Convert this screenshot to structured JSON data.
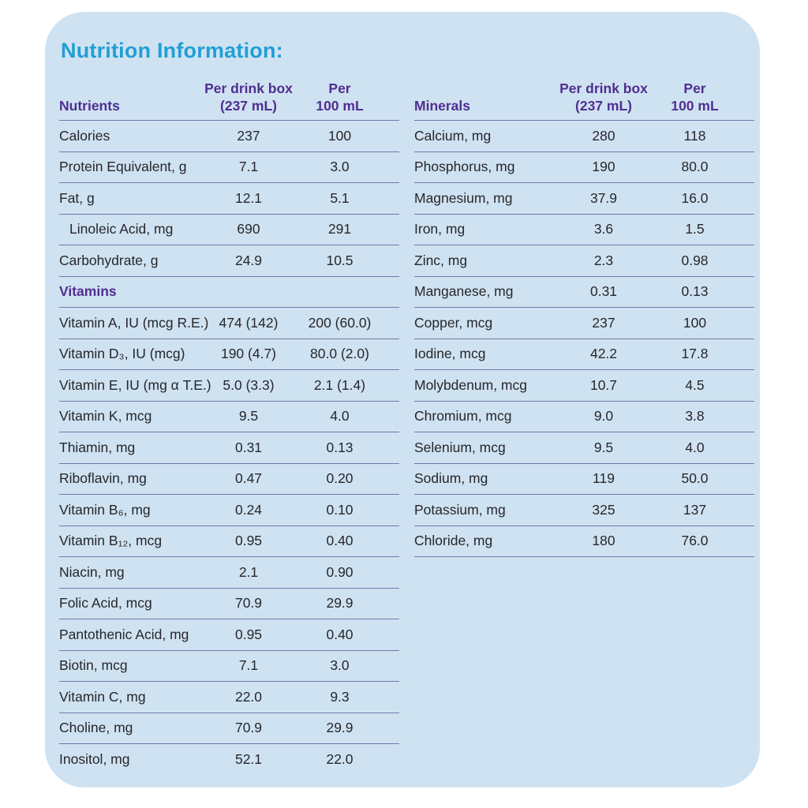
{
  "title": "Nutrition Information:",
  "colors": {
    "page_bg": "#ffffff",
    "card_bg": "#cfe2f1",
    "title": "#219fd6",
    "heading": "#502e91",
    "text": "#26272b",
    "divider": "#7376a9"
  },
  "column_headers": {
    "per_box_line1": "Per drink box",
    "per_box_line2": "(237 mL)",
    "per_100_line1": "Per",
    "per_100_line2": "100 mL"
  },
  "nutrients_table": {
    "header": "Nutrients",
    "rows": [
      {
        "label": "Calories",
        "per_box": "237",
        "per_100": "100"
      },
      {
        "label": "Protein Equivalent, g",
        "per_box": "7.1",
        "per_100": "3.0"
      },
      {
        "label": "Fat, g",
        "per_box": "12.1",
        "per_100": "5.1"
      },
      {
        "label": "Linoleic Acid, mg",
        "per_box": "690",
        "per_100": "291",
        "indent": true
      },
      {
        "label": "Carbohydrate, g",
        "per_box": "24.9",
        "per_100": "10.5"
      },
      {
        "section": "Vitamins"
      },
      {
        "label": "Vitamin A, IU (mcg R.E.)",
        "per_box": "474 (142)",
        "per_100": "200 (60.0)"
      },
      {
        "label": "Vitamin D₃, IU (mcg)",
        "per_box": "190 (4.7)",
        "per_100": "80.0 (2.0)"
      },
      {
        "label": "Vitamin E, IU (mg α T.E.)",
        "per_box": "5.0 (3.3)",
        "per_100": "2.1 (1.4)"
      },
      {
        "label": "Vitamin K, mcg",
        "per_box": "9.5",
        "per_100": "4.0"
      },
      {
        "label": "Thiamin, mg",
        "per_box": "0.31",
        "per_100": "0.13"
      },
      {
        "label": "Riboflavin, mg",
        "per_box": "0.47",
        "per_100": "0.20"
      },
      {
        "label": "Vitamin B₆, mg",
        "per_box": "0.24",
        "per_100": "0.10"
      },
      {
        "label": "Vitamin B₁₂, mcg",
        "per_box": "0.95",
        "per_100": "0.40"
      },
      {
        "label": "Niacin, mg",
        "per_box": "2.1",
        "per_100": "0.90"
      },
      {
        "label": "Folic Acid, mcg",
        "per_box": "70.9",
        "per_100": "29.9"
      },
      {
        "label": "Pantothenic Acid, mg",
        "per_box": "0.95",
        "per_100": "0.40"
      },
      {
        "label": "Biotin, mcg",
        "per_box": "7.1",
        "per_100": "3.0"
      },
      {
        "label": "Vitamin C, mg",
        "per_box": "22.0",
        "per_100": "9.3"
      },
      {
        "label": "Choline, mg",
        "per_box": "70.9",
        "per_100": "29.9"
      },
      {
        "label": "Inositol, mg",
        "per_box": "52.1",
        "per_100": "22.0"
      }
    ]
  },
  "minerals_table": {
    "header": "Minerals",
    "rows": [
      {
        "label": "Calcium, mg",
        "per_box": "280",
        "per_100": "118"
      },
      {
        "label": "Phosphorus, mg",
        "per_box": "190",
        "per_100": "80.0"
      },
      {
        "label": "Magnesium, mg",
        "per_box": "37.9",
        "per_100": "16.0"
      },
      {
        "label": "Iron, mg",
        "per_box": "3.6",
        "per_100": "1.5"
      },
      {
        "label": "Zinc, mg",
        "per_box": "2.3",
        "per_100": "0.98"
      },
      {
        "label": "Manganese, mg",
        "per_box": "0.31",
        "per_100": "0.13"
      },
      {
        "label": "Copper, mcg",
        "per_box": "237",
        "per_100": "100"
      },
      {
        "label": "Iodine, mcg",
        "per_box": "42.2",
        "per_100": "17.8"
      },
      {
        "label": "Molybdenum, mcg",
        "per_box": "10.7",
        "per_100": "4.5"
      },
      {
        "label": "Chromium, mcg",
        "per_box": "9.0",
        "per_100": "3.8"
      },
      {
        "label": "Selenium, mcg",
        "per_box": "9.5",
        "per_100": "4.0"
      },
      {
        "label": "Sodium, mg",
        "per_box": "119",
        "per_100": "50.0"
      },
      {
        "label": "Potassium, mg",
        "per_box": "325",
        "per_100": "137"
      },
      {
        "label": "Chloride, mg",
        "per_box": "180",
        "per_100": "76.0"
      }
    ]
  }
}
